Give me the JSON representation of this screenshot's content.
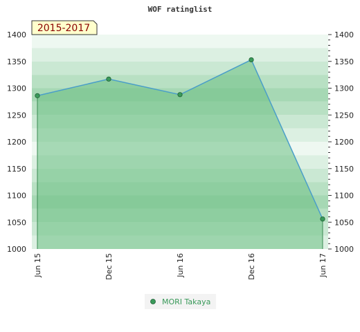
{
  "chart_data": {
    "type": "area",
    "title": "WOF ratinglist",
    "period_label": "2015-2017",
    "categories": [
      "Jun 15",
      "Dec 15",
      "Jun 16",
      "Dec 16",
      "Jun 17"
    ],
    "series": [
      {
        "name": "MORI Takaya",
        "values": [
          1286,
          1317,
          1288,
          1353,
          1056
        ]
      }
    ],
    "ylim": [
      1000,
      1400
    ],
    "yticks": [
      1000,
      1050,
      1100,
      1150,
      1200,
      1250,
      1300,
      1350,
      1400
    ],
    "grid": "horizontal bands",
    "legend": "bottom-center",
    "colors": {
      "line": "#4a9ec9",
      "fill": "#6cbf84",
      "marker": "#3a9a5a",
      "band_dark": "#a6d8b4",
      "band_light": "#eef8f1",
      "badge_bg": "#ffffcc"
    }
  }
}
